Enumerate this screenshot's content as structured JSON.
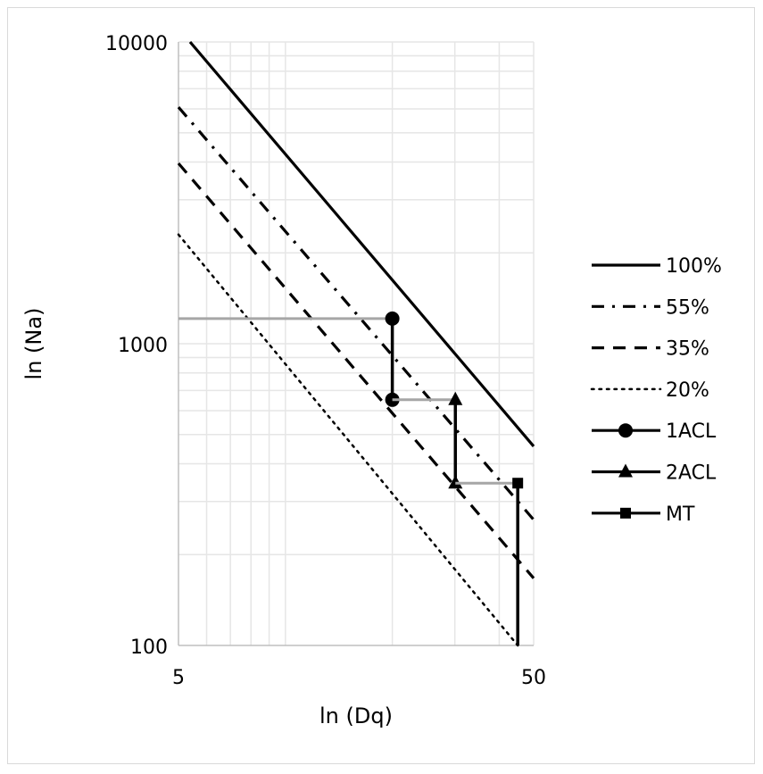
{
  "chart_data": {
    "type": "line",
    "xlabel": "ln (Dq)",
    "ylabel": "ln (Na)",
    "x_scale": "log",
    "y_scale": "log",
    "xlim": [
      5,
      50
    ],
    "ylim": [
      100,
      10000
    ],
    "x_ticks": [
      "5",
      "50"
    ],
    "y_ticks": [
      "100",
      "1000",
      "10000"
    ],
    "grid": true,
    "legend_position": "right",
    "series": [
      {
        "name": "100%",
        "style": "solid",
        "x": [
          5.39,
          50
        ],
        "y": [
          10000,
          457
        ]
      },
      {
        "name": "55%",
        "style": "dash-dot",
        "x": [
          5,
          50
        ],
        "y": [
          6080,
          261
        ]
      },
      {
        "name": "35%",
        "style": "dashed",
        "x": [
          5,
          50
        ],
        "y": [
          3960,
          167
        ]
      },
      {
        "name": "20%",
        "style": "dotted",
        "x": [
          5,
          45.1
        ],
        "y": [
          2300,
          100
        ]
      },
      {
        "name": "1ACL",
        "style": "marker-circle",
        "x": [
          20,
          20
        ],
        "y": [
          1211,
          652
        ],
        "lead_from_x": 5
      },
      {
        "name": "2ACL",
        "style": "marker-triangle",
        "x": [
          30.1,
          30.1
        ],
        "y": [
          652,
          345
        ],
        "lead_from_x": 20
      },
      {
        "name": "MT",
        "style": "marker-square",
        "x": [
          45.1,
          45.1
        ],
        "y": [
          345,
          100
        ],
        "lead_from_x": 30.1
      }
    ],
    "colors": {
      "line": "#000000",
      "connector": "#a6a6a6",
      "grid": "#e6e6e6",
      "axis": "#bfbfbf"
    }
  }
}
